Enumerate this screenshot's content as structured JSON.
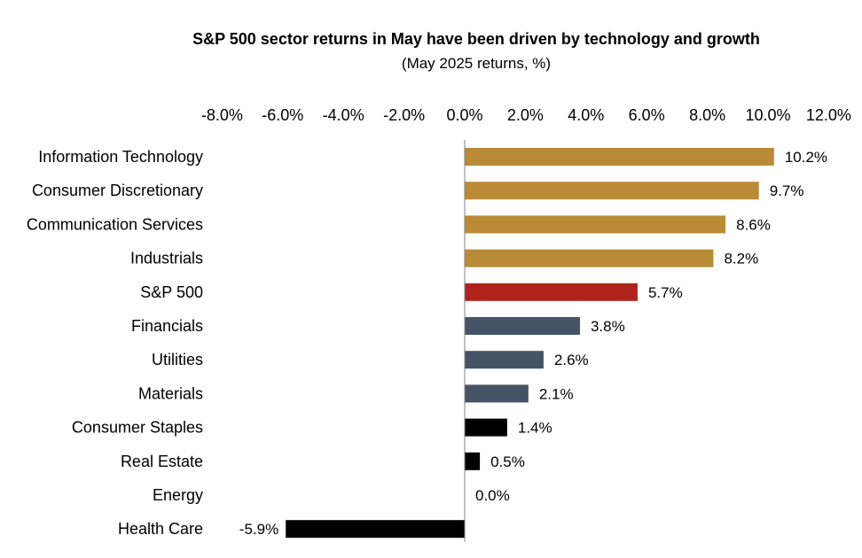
{
  "chart_data": {
    "type": "bar",
    "orientation": "horizontal",
    "title": "S&P 500 sector returns in May have been driven by technology and growth",
    "subtitle": "(May 2025 returns, %)",
    "xlim": [
      -8,
      12
    ],
    "xticks": [
      "-8.0%",
      "-6.0%",
      "-4.0%",
      "-2.0%",
      "0.0%",
      "2.0%",
      "4.0%",
      "6.0%",
      "8.0%",
      "10.0%",
      "12.0%"
    ],
    "xtick_values": [
      -8,
      -6,
      -4,
      -2,
      0,
      2,
      4,
      6,
      8,
      10,
      12
    ],
    "axis_position": "top",
    "categories": [
      "Information Technology",
      "Consumer Discretionary",
      "Communication Services",
      "Industrials",
      "S&P 500",
      "Financials",
      "Utilities",
      "Materials",
      "Consumer Staples",
      "Real Estate",
      "Energy",
      "Health Care"
    ],
    "values": [
      10.2,
      9.7,
      8.6,
      8.2,
      5.7,
      3.8,
      2.6,
      2.1,
      1.4,
      0.5,
      0.0,
      -5.9
    ],
    "data_labels": [
      "10.2%",
      "9.7%",
      "8.6%",
      "8.2%",
      "5.7%",
      "3.8%",
      "2.6%",
      "2.1%",
      "1.4%",
      "0.5%",
      "0.0%",
      "-5.9%"
    ],
    "bar_colors": [
      "#B98B36",
      "#B98B36",
      "#B98B36",
      "#B98B36",
      "#AF231C",
      "#465367",
      "#465367",
      "#465367",
      "#000000",
      "#000000",
      "#000000",
      "#000000"
    ],
    "grid": false,
    "legend": "none"
  }
}
